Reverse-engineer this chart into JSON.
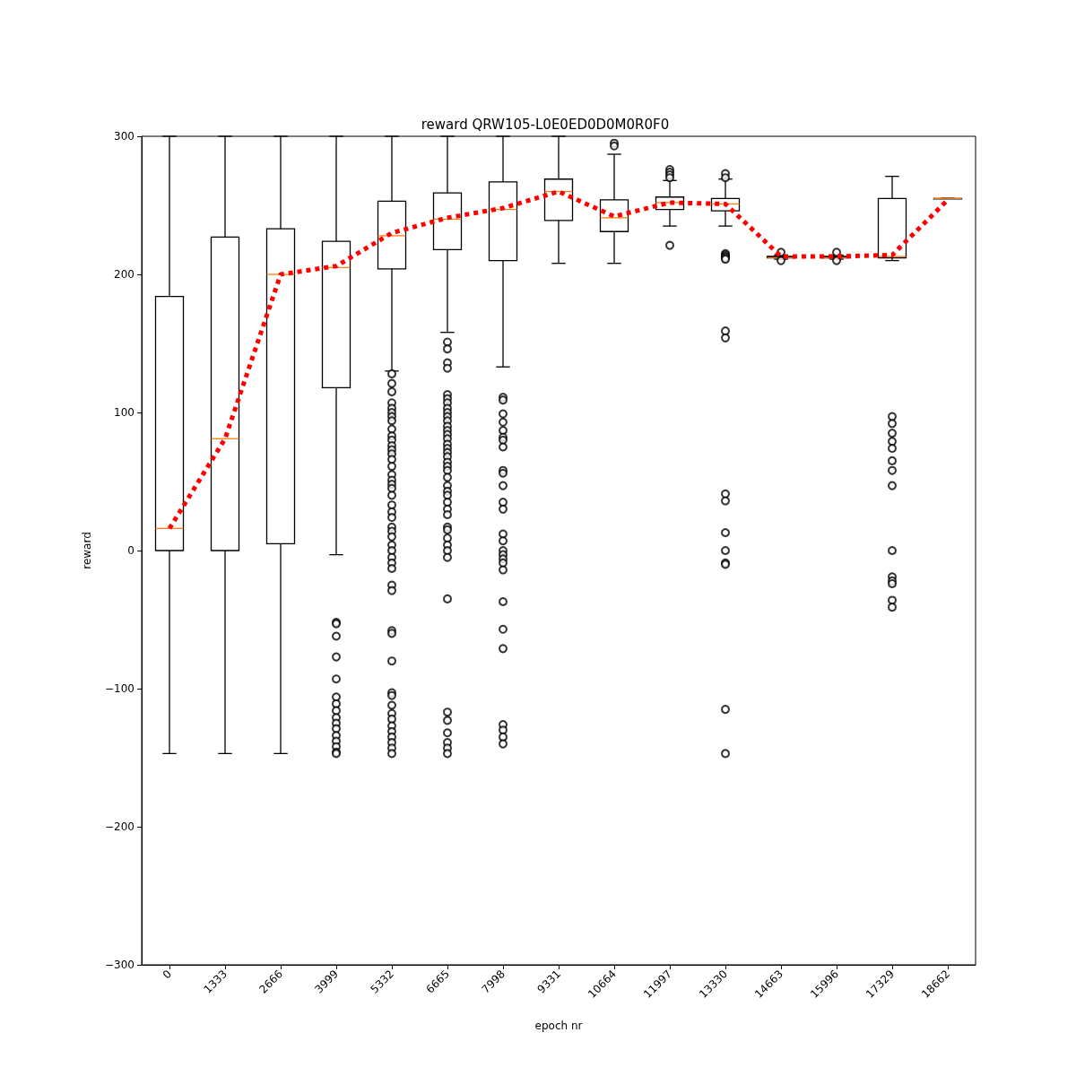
{
  "chart_data": {
    "type": "box",
    "title": "reward QRW105-L0E0ED0D0M0R0F0",
    "xlabel": "epoch nr",
    "ylabel": "reward",
    "categories": [
      "0",
      "1333",
      "2666",
      "3999",
      "5332",
      "6665",
      "7998",
      "9331",
      "10664",
      "11997",
      "13330",
      "14663",
      "15996",
      "17329",
      "18662"
    ],
    "ylim": [
      -300,
      300
    ],
    "yticks": [
      -300,
      -200,
      -100,
      0,
      100,
      200,
      300
    ],
    "grid": false,
    "series": [
      {
        "color": "#000000",
        "boxes": [
          {
            "low": -147,
            "q1": 0,
            "median": 16,
            "q3": 184,
            "high": 300
          },
          {
            "low": -147,
            "q1": 0,
            "median": 81,
            "q3": 227,
            "high": 300
          },
          {
            "low": -147,
            "q1": 5,
            "median": 200,
            "q3": 233,
            "high": 300
          },
          {
            "low": -3,
            "q1": 118,
            "median": 205,
            "q3": 224,
            "high": 300,
            "outliers": [
              -52,
              -53,
              -62,
              -77,
              -93,
              -106,
              -111,
              -116,
              -121,
              -125,
              -129,
              -134,
              -138,
              -142,
              -146,
              -147
            ]
          },
          {
            "low": 130,
            "q1": 204,
            "median": 228,
            "q3": 253,
            "high": 300,
            "outliers": [
              128,
              121,
              115,
              107,
              103,
              100,
              97,
              94,
              88,
              83,
              80,
              76,
              73,
              70,
              66,
              61,
              55,
              51,
              48,
              45,
              40,
              33,
              28,
              24,
              17,
              14,
              10,
              4,
              0,
              -5,
              -9,
              -13,
              -25,
              -29,
              -58,
              -60,
              -80,
              -103,
              -105,
              -112,
              -118,
              -122,
              -127,
              -131,
              -135,
              -139,
              -143,
              -147
            ]
          },
          {
            "low": 158,
            "q1": 218,
            "median": 240,
            "q3": 259,
            "high": 300,
            "outliers": [
              151,
              146,
              136,
              132,
              113,
              110,
              107,
              103,
              100,
              97,
              94,
              90,
              87,
              84,
              81,
              77,
              74,
              71,
              68,
              64,
              61,
              58,
              53,
              47,
              43,
              40,
              35,
              30,
              26,
              17,
              15,
              9,
              4,
              0,
              -5,
              -35,
              -117,
              -123,
              -132,
              -139,
              -143,
              -147
            ]
          },
          {
            "low": 133,
            "q1": 210,
            "median": 247,
            "q3": 267,
            "high": 300,
            "outliers": [
              111,
              109,
              99,
              93,
              87,
              82,
              80,
              75,
              58,
              56,
              47,
              35,
              30,
              12,
              7,
              0,
              -3,
              -6,
              -9,
              -14,
              -37,
              -57,
              -71,
              -126,
              -130,
              -135,
              -140
            ]
          },
          {
            "low": 208,
            "q1": 239,
            "median": 260,
            "q3": 269,
            "high": 300
          },
          {
            "low": 208,
            "q1": 231,
            "median": 241,
            "q3": 254,
            "high": 287,
            "outliers": [
              295,
              293
            ]
          },
          {
            "low": 235,
            "q1": 247,
            "median": 252,
            "q3": 256,
            "high": 268,
            "outliers": [
              276,
              274,
              272,
              270,
              221
            ]
          },
          {
            "low": 235,
            "q1": 246,
            "median": 251,
            "q3": 255,
            "high": 269,
            "outliers": [
              273,
              270,
              215,
              214,
              213,
              212,
              211,
              159,
              154,
              41,
              36,
              13,
              0,
              -9,
              -10,
              -115,
              -147
            ]
          },
          {
            "low": 211,
            "q1": 212,
            "median": 212,
            "q3": 213,
            "high": 214,
            "outliers": [
              216,
              210
            ]
          },
          {
            "low": 211,
            "q1": 212,
            "median": 212,
            "q3": 213,
            "high": 214,
            "outliers": [
              216,
              210
            ]
          },
          {
            "low": 210,
            "q1": 212,
            "median": 213,
            "q3": 255,
            "high": 271,
            "outliers": [
              97,
              92,
              85,
              79,
              74,
              65,
              58,
              47,
              0,
              -19,
              -22,
              -24,
              -36,
              -41
            ]
          },
          {
            "low": 255,
            "q1": 255,
            "median": 255,
            "q3": 255,
            "high": 255
          }
        ]
      },
      {
        "type": "line",
        "color": "#ff0000",
        "line_style": "dotted",
        "marker": "none",
        "values": [
          16,
          81,
          200,
          206,
          230,
          241,
          248,
          260,
          242,
          252,
          251,
          213,
          213,
          214,
          254
        ]
      }
    ]
  }
}
